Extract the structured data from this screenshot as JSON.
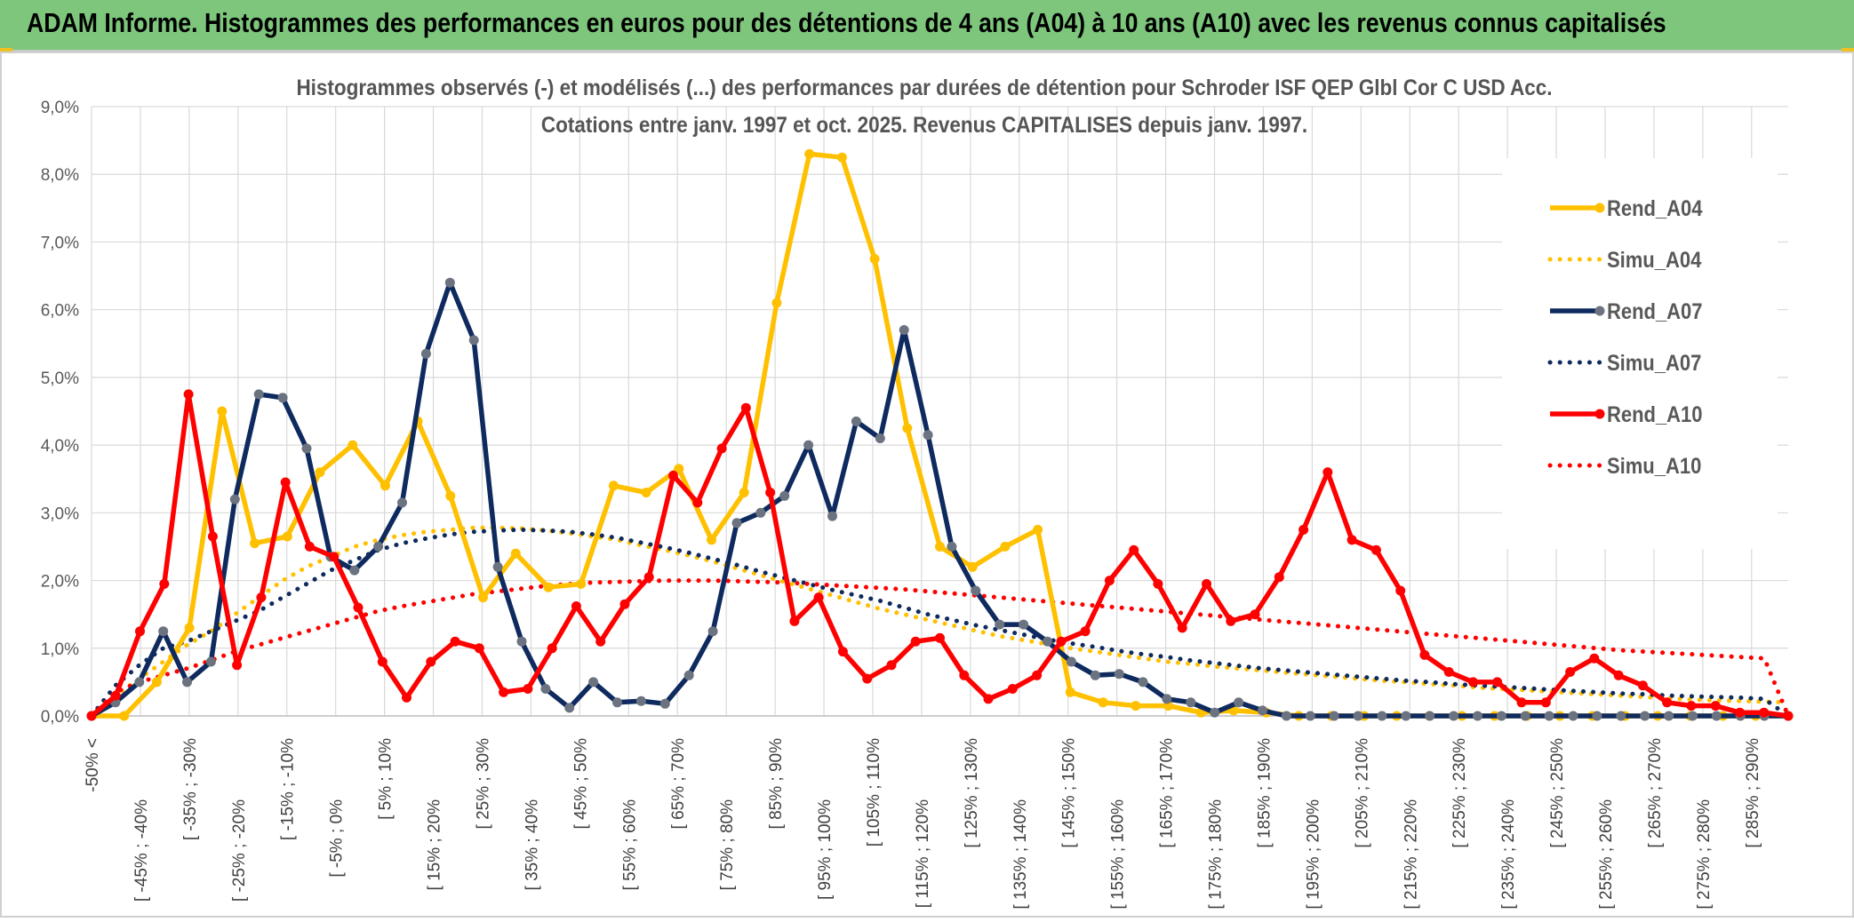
{
  "banner": {
    "title": "ADAM Informe. Histogrammes des performances en euros pour des détentions de 4 ans (A04) à 10 ans (A10) avec les revenus connus capitalisés"
  },
  "colors": {
    "banner_bg": "#7dc67c",
    "A04": "#ffc000",
    "A07": "#0e2a5e",
    "A10": "#ff0000",
    "grid": "#d9d9d9",
    "marker_A07": "#6b7280"
  },
  "chart_data": {
    "type": "line",
    "title": "Histogrammes observés (-) et modélisés (...) des performances par durées de détention pour Schroder ISF QEP Glbl Cor C USD Acc.",
    "subtitle": "Cotations entre janv. 1997 et oct. 2025. Revenus CAPITALISES depuis janv. 1997.",
    "xlabel": "",
    "ylabel": "",
    "ylim": [
      0,
      9
    ],
    "y_unit": "%",
    "y_ticks": [
      "0,0%",
      "1,0%",
      "2,0%",
      "3,0%",
      "4,0%",
      "5,0%",
      "6,0%",
      "7,0%",
      "8,0%",
      "9,0%"
    ],
    "grid": true,
    "legend_position": "right",
    "x_tick_labels": [
      "-50% <",
      "[ -45% ; -40%",
      "[ -35% ; -30%",
      "[ -25% ; -20%",
      "[ -15% ; -10%",
      "[ -5% ; 0%",
      "[ 5% ; 10%",
      "[ 15% ; 20%",
      "[ 25% ; 30%",
      "[ 35% ; 40%",
      "[ 45% ; 50%",
      "[ 55% ; 60%",
      "[ 65% ; 70%",
      "[ 75% ; 80%",
      "[ 85% ; 90%",
      "[ 95% ; 100%",
      "[ 105% ; 110%",
      "[ 115% ; 120%",
      "[ 125% ; 130%",
      "[ 135% ; 140%",
      "[ 145% ; 150%",
      "[ 155% ; 160%",
      "[ 165% ; 170%",
      "[ 175% ; 180%",
      "[ 185% ; 190%",
      "[ 195% ; 200%",
      "[ 205% ; 210%",
      "[ 215% ; 220%",
      "[ 225% ; 230%",
      "[ 235% ; 240%",
      "[ 245% ; 250%",
      "[ 255% ; 260%",
      "[ 265% ; 270%",
      "[ 275% ; 280%",
      "[ 285% ; 290%"
    ],
    "series": [
      {
        "name": "Rend_A04",
        "style": "solid",
        "color": "#ffc000",
        "values": [
          0.0,
          0.0,
          0.5,
          1.3,
          4.5,
          2.55,
          2.65,
          3.6,
          4.0,
          3.4,
          4.35,
          3.25,
          1.75,
          2.4,
          1.9,
          1.95,
          3.4,
          3.3,
          3.65,
          2.6,
          3.3,
          6.1,
          8.3,
          8.25,
          6.75,
          4.25,
          2.5,
          2.2,
          2.5,
          2.75,
          0.35,
          0.2,
          0.15,
          0.15,
          0.05,
          0.08,
          0.05,
          0.0,
          0.0,
          0.0,
          0.0,
          0.0,
          0.0,
          0.0,
          0.0,
          0.0,
          0.0,
          0.0,
          0.0,
          0.0,
          0.0,
          0.0,
          0.0
        ]
      },
      {
        "name": "Simu_A04",
        "style": "dotted",
        "color": "#ffc000",
        "values": [
          0.0,
          0.3,
          0.55,
          0.8,
          1.05,
          1.25,
          1.5,
          1.75,
          2.0,
          2.2,
          2.35,
          2.5,
          2.6,
          2.67,
          2.72,
          2.75,
          2.78,
          2.78,
          2.77,
          2.74,
          2.7,
          2.65,
          2.6,
          2.52,
          2.45,
          2.37,
          2.28,
          2.18,
          2.08,
          1.98,
          1.88,
          1.78,
          1.68,
          1.58,
          1.5,
          1.42,
          1.34,
          1.26,
          1.18,
          1.12,
          1.06,
          1.0,
          0.95,
          0.9,
          0.85,
          0.8,
          0.77,
          0.73,
          0.7,
          0.67,
          0.64,
          0.61,
          0.58,
          0.55,
          0.52,
          0.5,
          0.47,
          0.45,
          0.42,
          0.4,
          0.38,
          0.36,
          0.34,
          0.32,
          0.3,
          0.28,
          0.26,
          0.24,
          0.23,
          0.22,
          0.21,
          0.2
        ]
      },
      {
        "name": "Rend_A07",
        "style": "solid",
        "color": "#0e2a5e",
        "values": [
          0.0,
          0.2,
          0.5,
          1.25,
          0.5,
          0.8,
          3.2,
          4.75,
          4.7,
          3.95,
          2.35,
          2.15,
          2.5,
          3.15,
          5.35,
          6.4,
          5.55,
          2.2,
          1.1,
          0.4,
          0.12,
          0.5,
          0.2,
          0.22,
          0.18,
          0.6,
          1.25,
          2.85,
          3.0,
          3.25,
          4.0,
          2.95,
          4.35,
          4.1,
          5.7,
          4.15,
          2.5,
          1.85,
          1.35,
          1.35,
          1.1,
          0.8,
          0.6,
          0.62,
          0.5,
          0.25,
          0.2,
          0.05,
          0.2,
          0.08,
          0.0,
          0.0,
          0.0,
          0.0,
          0.0,
          0.0,
          0.0,
          0.0,
          0.0,
          0.0,
          0.0,
          0.0,
          0.0,
          0.0,
          0.0,
          0.0,
          0.0,
          0.0,
          0.0,
          0.0,
          0.0,
          0.0
        ]
      },
      {
        "name": "Simu_A07",
        "style": "dotted",
        "color": "#0e2a5e",
        "values": [
          0.0,
          0.45,
          0.75,
          1.0,
          1.1,
          1.25,
          1.4,
          1.55,
          1.75,
          1.95,
          2.15,
          2.3,
          2.45,
          2.55,
          2.62,
          2.68,
          2.72,
          2.74,
          2.75,
          2.74,
          2.72,
          2.68,
          2.63,
          2.56,
          2.49,
          2.41,
          2.32,
          2.23,
          2.13,
          2.04,
          1.95,
          1.86,
          1.78,
          1.7,
          1.6,
          1.5,
          1.42,
          1.34,
          1.27,
          1.2,
          1.13,
          1.07,
          1.02,
          0.96,
          0.91,
          0.87,
          0.82,
          0.78,
          0.74,
          0.7,
          0.67,
          0.64,
          0.61,
          0.58,
          0.55,
          0.52,
          0.5,
          0.47,
          0.45,
          0.43,
          0.41,
          0.39,
          0.37,
          0.35,
          0.33,
          0.32,
          0.3,
          0.29,
          0.28,
          0.27,
          0.25,
          0.0
        ]
      },
      {
        "name": "Rend_A10",
        "style": "solid",
        "color": "#ff0000",
        "values": [
          0.0,
          0.3,
          1.25,
          1.95,
          4.75,
          2.65,
          0.75,
          1.75,
          3.45,
          2.5,
          2.35,
          1.6,
          0.8,
          0.27,
          0.8,
          1.1,
          1.0,
          0.35,
          0.4,
          1.0,
          1.62,
          1.1,
          1.65,
          2.05,
          3.55,
          3.15,
          3.95,
          4.55,
          3.3,
          1.4,
          1.75,
          0.95,
          0.55,
          0.75,
          1.1,
          1.15,
          0.6,
          0.25,
          0.4,
          0.6,
          1.1,
          1.25,
          2.0,
          2.45,
          1.95,
          1.3,
          1.95,
          1.4,
          1.5,
          2.05,
          2.75,
          3.6,
          2.6,
          2.45,
          1.85,
          0.9,
          0.65,
          0.5,
          0.5,
          0.2,
          0.2,
          0.65,
          0.85,
          0.6,
          0.45,
          0.2,
          0.15,
          0.15,
          0.05,
          0.05,
          0.0
        ]
      },
      {
        "name": "Simu_A10",
        "style": "dotted",
        "color": "#ff0000",
        "values": [
          0.0,
          0.35,
          0.5,
          0.6,
          0.7,
          0.82,
          0.95,
          1.05,
          1.15,
          1.25,
          1.35,
          1.45,
          1.55,
          1.62,
          1.68,
          1.74,
          1.8,
          1.84,
          1.88,
          1.92,
          1.95,
          1.97,
          1.98,
          1.99,
          2.0,
          2.0,
          2.0,
          1.99,
          1.98,
          1.97,
          1.95,
          1.93,
          1.91,
          1.89,
          1.87,
          1.84,
          1.81,
          1.78,
          1.75,
          1.72,
          1.69,
          1.66,
          1.63,
          1.6,
          1.57,
          1.54,
          1.51,
          1.48,
          1.45,
          1.42,
          1.39,
          1.36,
          1.33,
          1.3,
          1.27,
          1.24,
          1.21,
          1.18,
          1.15,
          1.12,
          1.09,
          1.06,
          1.03,
          1.0,
          0.97,
          0.95,
          0.93,
          0.91,
          0.89,
          0.87,
          0.85,
          0.0
        ]
      }
    ]
  }
}
